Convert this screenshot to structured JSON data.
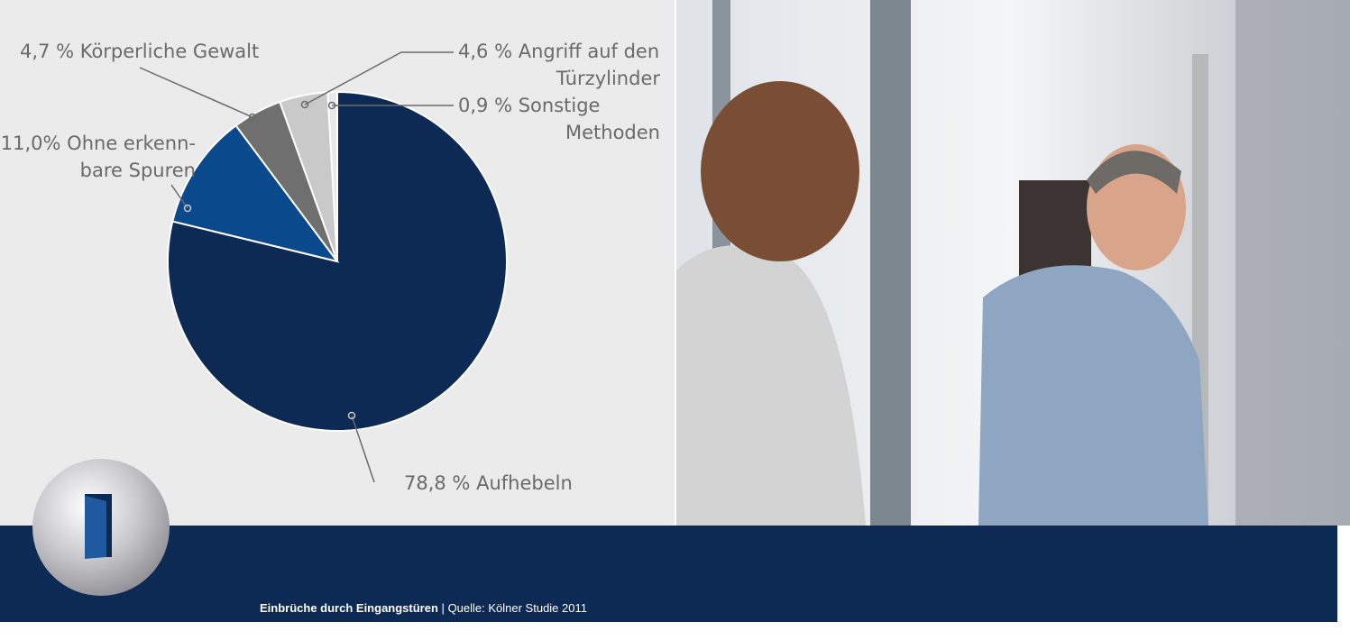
{
  "chart_data": {
    "type": "pie",
    "categories": [
      "Aufhebeln",
      [
        "Ohne erkenn-",
        "bare Spuren"
      ],
      "Körperliche Gewalt",
      [
        "Angriff auf den",
        "Türzylinder"
      ],
      [
        "Sonstige",
        "Methoden"
      ]
    ],
    "values": [
      78.8,
      11.0,
      4.7,
      4.6,
      0.9
    ],
    "value_labels": [
      "78,8 %",
      "11,0%",
      "4,7 %",
      "4,6 %",
      "0,9 %"
    ],
    "colors": [
      "#0d2a55",
      "#0a4a8c",
      "#6f6f6f",
      "#c9c9c9",
      "#e8e8e8"
    ],
    "caption": "Einbrüche durch Eingangstüren",
    "separator": "|",
    "source": "Quelle: Kölner Studie 2011"
  }
}
